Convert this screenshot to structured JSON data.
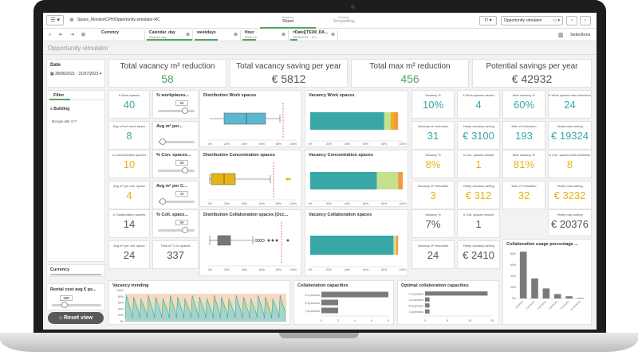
{
  "app": {
    "title": "Space_Monitor/CPH/Opportunity-simulator-RC",
    "tabs": [
      {
        "sub": "Analyze",
        "label": "Sheet"
      },
      {
        "sub": "Narrate",
        "label": "Storytelling"
      }
    ],
    "sheet_selector": "Opportunity simulator",
    "selections_label": "Selections"
  },
  "selection_chips": [
    {
      "title": "Currency",
      "value": ""
    },
    {
      "title": "Calendar_day",
      "value": "Regular day"
    },
    {
      "title": "weekdays",
      "value": ""
    },
    {
      "title": "Hour",
      "value": "Work ho"
    },
    {
      "title": "=Date([T$1M_DA...",
      "value": "28/06/2021 - 21/..."
    }
  ],
  "sheet_title": "Opportunity simulator",
  "left": {
    "date_label": "Date",
    "date_value": "28/06/2021 - 21/07/2021",
    "filter_tab": "Filter",
    "building_label": "Building",
    "building_value": "Borups alle 177",
    "currency_label": "Currency",
    "rental_label": "Rental cost avg € pe...",
    "rental_value": "100",
    "reset_label": "Reset view"
  },
  "kpis": [
    {
      "title": "Total vacancy m² reduction",
      "value": "58"
    },
    {
      "title": "Total vacancy saving per year",
      "value": "€ 5812"
    },
    {
      "title": "Total max m² reduction",
      "value": "456"
    },
    {
      "title": "Potential savings per year",
      "value": "€ 42932"
    }
  ],
  "work_row": {
    "spaces_label": "# Work spaces",
    "spaces_value": "40",
    "avg_label": "Avg m² per work space",
    "avg_value": "8",
    "slider1_title": "% workplaces...",
    "slider1_value": "95",
    "slider2_title": "Avg m² per...",
    "dist_title": "Distribution Work spaces",
    "vac_title": "Vacancy Work spaces",
    "k1_label": "Vacancy %",
    "k1_value": "10%",
    "k2_label": "# Work spaces vacant",
    "k2_value": "4",
    "k3_label": "Max vacancy %",
    "k3_value": "60%",
    "k4_label": "# Work spaces max reduction",
    "k4_value": "24",
    "k5_label": "Vacancy m² reduction",
    "k5_value": "31",
    "k6_label": "Yearly vacancy saving",
    "k6_value": "€ 3100",
    "k7_label": "Max m² reduction",
    "k7_value": "193",
    "k8_label": "Yearly max saving",
    "k8_value": "€ 19324"
  },
  "conc_row": {
    "spaces_label": "# Concentration spaces",
    "spaces_value": "10",
    "avg_label": "Avg m² per con. space",
    "avg_value": "4",
    "slider1_title": "% Con. spaces...",
    "slider1_value": "98",
    "slider2_title": "Avg m² per C...",
    "slider2_value": "40",
    "dist_title": "Distribution Concentration spaces",
    "vac_title": "Vacancy Concentration spaces",
    "k1_label": "Vacancy %",
    "k1_value": "8%",
    "k2_label": "# Con. spaces vacant",
    "k2_value": "1",
    "k3_label": "Max vacancy %",
    "k3_value": "81%",
    "k4_label": "# Con. spaces max reduction",
    "k4_value": "8",
    "k5_label": "Vacancy m² reduction",
    "k5_value": "3",
    "k6_label": "Yearly vacancy saving",
    "k6_value": "€ 312",
    "k7_label": "Max m² reduction",
    "k7_value": "32",
    "k8_label": "Yearly max saving",
    "k8_value": "€ 3232"
  },
  "coll_row": {
    "spaces_label": "# Collaboration spaces",
    "spaces_value": "14",
    "avg_label": "Avg m² per coll. space",
    "avg_value": "24",
    "total_label": "Total m² Coll. spaces",
    "total_value": "337",
    "slider1_title": "% Coll. space...",
    "slider1_value": "99",
    "dist_title": "Distribution Collaboration spaces (Occ...",
    "vac_title": "Vacancy Collaboration spaces",
    "k1_label": "Vacancy %",
    "k1_value": "7%",
    "k2_label": "# Coll. spaces vacant",
    "k2_value": "1",
    "k4_label": "Yearly max saving",
    "k4_value": "€ 20376",
    "k5_label": "Vacancy m² reduction",
    "k5_value": "24",
    "k6_label": "Yearly vacancy saving",
    "k6_value": "€ 2410",
    "usage_title": "Collaboration usage percentage ..."
  },
  "bottom": {
    "trend_title": "Vacancy trending",
    "cap_title": "Collaboration capacities",
    "opt_title": "Optimal collaboration capacities"
  },
  "colors": {
    "green": "#52a569",
    "teal": "#3aa7a7",
    "yellow": "#e3b514",
    "lime": "#c5e08f",
    "orange": "#f59a3c",
    "gray": "#7a7a7a"
  },
  "chart_data": [
    {
      "type": "bar",
      "title": "Vacancy Work spaces",
      "series": [
        {
          "values": [
            80
          ]
        },
        {
          "values": [
            7
          ]
        },
        {
          "values": [
            3
          ]
        },
        {
          "values": [
            5
          ]
        }
      ],
      "xticks": [
        "0%",
        "20%",
        "40%",
        "60%",
        "80%",
        "100%"
      ]
    },
    {
      "type": "bar",
      "title": "Vacancy Concentration spaces",
      "series": [
        {
          "values": [
            72
          ]
        },
        {
          "values": [
            23
          ]
        },
        {
          "values": [
            5
          ]
        }
      ],
      "xticks": [
        "0%",
        "20%",
        "40%",
        "60%",
        "80%",
        "100%"
      ]
    },
    {
      "type": "bar",
      "title": "Vacancy Collaboration spaces",
      "series": [
        {
          "values": [
            90
          ]
        },
        {
          "values": [
            3
          ]
        },
        {
          "values": [
            2
          ]
        }
      ],
      "xticks": [
        "0%",
        "20%",
        "40%",
        "60%",
        "80%",
        "100%"
      ]
    },
    {
      "type": "bar",
      "title": "Collaboration capacities",
      "categories": [
        "3-4 persons",
        "5-6 persons",
        "7-8 persons"
      ],
      "values": [
        8,
        2,
        2
      ],
      "xticks": [
        "0",
        "2",
        "4",
        "6",
        "8"
      ]
    },
    {
      "type": "bar",
      "title": "Optimal collaboration capacities",
      "categories": [
        "1-2 persons",
        "3-4 persons",
        "5-6 persons",
        "7-8 persons"
      ],
      "values": [
        14,
        1,
        1,
        1
      ],
      "xticks": [
        "0",
        "5",
        "10",
        "15"
      ]
    },
    {
      "type": "bar",
      "title": "Collaboration usage percentage ...",
      "categories": [
        "1 person",
        "2 persons",
        "3 persons",
        "4 persons",
        "5 persons",
        "6+ persons"
      ],
      "values": [
        84,
        36,
        18,
        8,
        4,
        1
      ],
      "yticks": [
        "0%",
        "20%",
        "40%",
        "60%",
        "80%"
      ]
    },
    {
      "type": "area",
      "title": "Vacancy trending",
      "yticks": [
        "0%",
        "20%",
        "40%",
        "60%",
        "80%",
        "100%"
      ]
    }
  ]
}
